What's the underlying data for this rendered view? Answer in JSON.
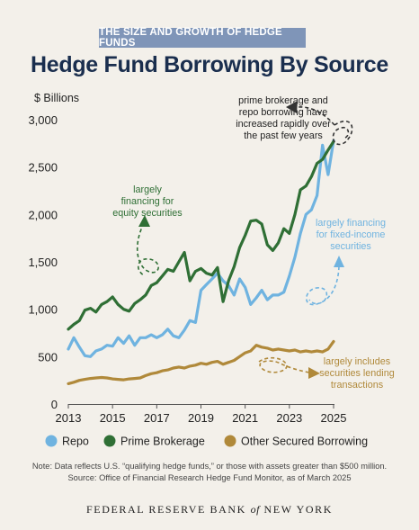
{
  "banner": "THE SIZE AND GROWTH OF HEDGE FUNDS",
  "title": "Hedge Fund Borrowing By Source",
  "note_line1": "Note: Data reflects U.S. “qualifying hedge funds,” or those with assets greater than $500 million.",
  "note_line2": "Source: Office of Financial Research Hedge Fund Monitor, as of March 2025",
  "footer_pre": "FEDERAL RESERVE BANK",
  "footer_of": "of",
  "footer_post": "NEW YORK",
  "chart_data": {
    "type": "line",
    "ylabel": "$ Billions",
    "ylim": [
      0,
      3000
    ],
    "yticks": [
      "0",
      "500",
      "1,000",
      "1,500",
      "2,000",
      "2,500",
      "3,000"
    ],
    "xlim": [
      2013,
      2025
    ],
    "xticks": [
      "2013",
      "2015",
      "2017",
      "2019",
      "2021",
      "2023",
      "2025"
    ],
    "grid": false,
    "legend_position": "bottom",
    "annotations": [
      {
        "lines": [
          "prime brokerage and",
          "repo borrowing have",
          "increased rapidly over",
          "the past few years"
        ],
        "color": "#222222"
      },
      {
        "lines": [
          "largely",
          "financing for",
          "equity securities"
        ],
        "color": "#2f6f35"
      },
      {
        "lines": [
          "largely financing",
          "for fixed-income",
          "securities"
        ],
        "color": "#6fb3e0"
      },
      {
        "lines": [
          "largely includes",
          "securities lending",
          "transactions"
        ],
        "color": "#b0893a"
      }
    ],
    "series": [
      {
        "name": "Repo",
        "color": "#6fb3e0",
        "x": [
          2013.0,
          2013.25,
          2013.5,
          2013.75,
          2014.0,
          2014.25,
          2014.5,
          2014.75,
          2015.0,
          2015.25,
          2015.5,
          2015.75,
          2016.0,
          2016.25,
          2016.5,
          2016.75,
          2017.0,
          2017.25,
          2017.5,
          2017.75,
          2018.0,
          2018.25,
          2018.5,
          2018.75,
          2019.0,
          2019.25,
          2019.5,
          2019.75,
          2020.0,
          2020.25,
          2020.5,
          2020.75,
          2021.0,
          2021.25,
          2021.5,
          2021.75,
          2022.0,
          2022.25,
          2022.5,
          2022.75,
          2023.0,
          2023.25,
          2023.5,
          2023.75,
          2024.0,
          2024.25,
          2024.5,
          2024.75,
          2025.0
        ],
        "values": [
          580,
          700,
          600,
          510,
          500,
          560,
          580,
          620,
          610,
          700,
          640,
          720,
          620,
          700,
          700,
          730,
          700,
          730,
          790,
          720,
          700,
          780,
          880,
          860,
          1200,
          1260,
          1320,
          1380,
          1300,
          1250,
          1150,
          1320,
          1230,
          1050,
          1120,
          1200,
          1100,
          1150,
          1150,
          1180,
          1350,
          1550,
          1800,
          2000,
          2050,
          2200,
          2730,
          2420,
          2780
        ]
      },
      {
        "name": "Prime Brokerage",
        "color": "#2f6f35",
        "x": [
          2013.0,
          2013.25,
          2013.5,
          2013.75,
          2014.0,
          2014.25,
          2014.5,
          2014.75,
          2015.0,
          2015.25,
          2015.5,
          2015.75,
          2016.0,
          2016.25,
          2016.5,
          2016.75,
          2017.0,
          2017.25,
          2017.5,
          2017.75,
          2018.0,
          2018.25,
          2018.5,
          2018.75,
          2019.0,
          2019.25,
          2019.5,
          2019.75,
          2020.0,
          2020.25,
          2020.5,
          2020.75,
          2021.0,
          2021.25,
          2021.5,
          2021.75,
          2022.0,
          2022.25,
          2022.5,
          2022.75,
          2023.0,
          2023.25,
          2023.5,
          2023.75,
          2024.0,
          2024.25,
          2024.5,
          2024.75,
          2025.0
        ],
        "values": [
          790,
          840,
          880,
          990,
          1010,
          970,
          1050,
          1080,
          1130,
          1050,
          1000,
          980,
          1060,
          1100,
          1150,
          1250,
          1280,
          1350,
          1420,
          1400,
          1500,
          1600,
          1300,
          1400,
          1430,
          1380,
          1360,
          1440,
          1080,
          1300,
          1450,
          1650,
          1780,
          1930,
          1940,
          1900,
          1680,
          1620,
          1700,
          1850,
          1800,
          2000,
          2260,
          2300,
          2400,
          2540,
          2580,
          2680,
          2770
        ]
      },
      {
        "name": "Other Secured Borrowing",
        "color": "#b0893a",
        "x": [
          2013.0,
          2013.25,
          2013.5,
          2013.75,
          2014.0,
          2014.25,
          2014.5,
          2014.75,
          2015.0,
          2015.25,
          2015.5,
          2015.75,
          2016.0,
          2016.25,
          2016.5,
          2016.75,
          2017.0,
          2017.25,
          2017.5,
          2017.75,
          2018.0,
          2018.25,
          2018.5,
          2018.75,
          2019.0,
          2019.25,
          2019.5,
          2019.75,
          2020.0,
          2020.25,
          2020.5,
          2020.75,
          2021.0,
          2021.25,
          2021.5,
          2021.75,
          2022.0,
          2022.25,
          2022.5,
          2022.75,
          2023.0,
          2023.25,
          2023.5,
          2023.75,
          2024.0,
          2024.25,
          2024.5,
          2024.75,
          2025.0
        ],
        "values": [
          215,
          230,
          250,
          260,
          270,
          275,
          280,
          275,
          265,
          260,
          255,
          265,
          270,
          275,
          300,
          320,
          330,
          350,
          360,
          380,
          390,
          380,
          400,
          410,
          430,
          420,
          440,
          450,
          420,
          440,
          460,
          500,
          540,
          560,
          620,
          600,
          590,
          570,
          580,
          570,
          560,
          570,
          550,
          560,
          550,
          560,
          550,
          580,
          660
        ]
      }
    ]
  }
}
